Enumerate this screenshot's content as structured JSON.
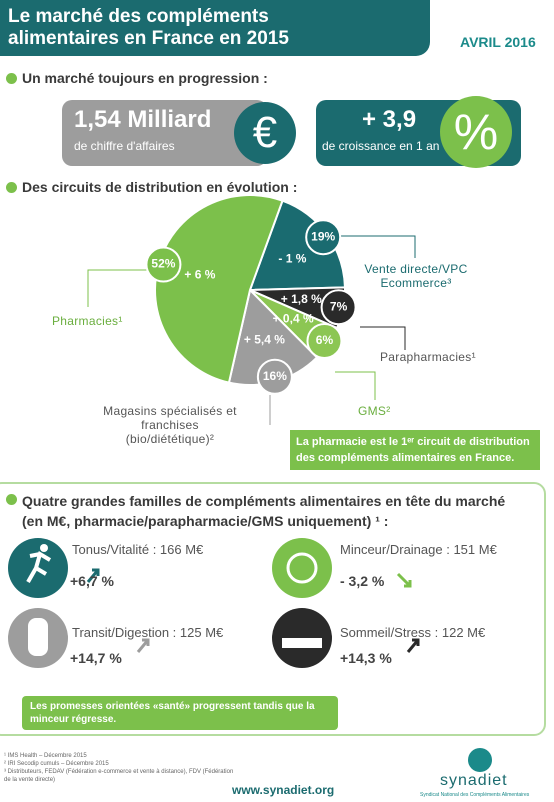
{
  "header": {
    "title": "Le marché des compléments alimentaires en France en 2015",
    "date": "AVRIL 2016"
  },
  "section1": {
    "heading": "Un marché toujours en progression :",
    "stat1": {
      "value": "1,54 Milliard",
      "label": "de chiffre d'affaires",
      "symbol": "€"
    },
    "stat2": {
      "value": "+ 3,9",
      "label": "de croissance en 1 an",
      "symbol": "%"
    }
  },
  "section2": {
    "heading": "Des circuits de distribution en évolution :",
    "callout": "La pharmacie est le 1ᵉʳ circuit de distribution des compléments alimentaires en France."
  },
  "chart_data": {
    "type": "pie",
    "categories": [
      "Vente directe/VPC Ecommerce³",
      "Parapharmacies¹",
      "GMS²",
      "Magasins spécialisés et franchises (bio/diététique)²",
      "Pharmacies¹"
    ],
    "values": [
      19,
      7,
      6,
      16,
      52
    ],
    "value_labels": [
      "19%",
      "7%",
      "6%",
      "16%",
      "52%"
    ],
    "changes": [
      "- 1 %",
      "+ 1,8 %",
      "+ 0,4 %",
      "+ 5,4 %",
      "+ 6 %"
    ],
    "colors": [
      "#1a6b70",
      "#2a2a2a",
      "#8cc653",
      "#9d9d9d",
      "#7cc04b"
    ]
  },
  "section3": {
    "heading": "Quatre grandes familles de compléments alimentaires en tête du marché (en M€, pharmacie/parapharmacie/GMS uniquement) ¹ :",
    "families": [
      {
        "label": "Tonus/Vitalité : 166 M€",
        "change": "+6,7 %"
      },
      {
        "label": "Minceur/Drainage : 151 M€",
        "change": "- 3,2 %"
      },
      {
        "label": "Transit/Digestion : 125 M€",
        "change": "+14,7 %"
      },
      {
        "label": "Sommeil/Stress : 122 M€",
        "change": "+14,3 %"
      }
    ],
    "note": "Les promesses orientées «santé» progressent tandis que la minceur régresse."
  },
  "footer": {
    "notes": [
      "¹ IMS Health – Décembre 2015",
      "² IRI Secodip cumuls – Décembre 2015",
      "³ Distributeurs, FEDAV (Fédération e-commerce et vente à distance), FDV (Fédération de la vente directe)"
    ],
    "url": "www.synadiet.org",
    "brand": "synadiet",
    "tagline": "Syndicat National des Compléments Alimentaires"
  }
}
